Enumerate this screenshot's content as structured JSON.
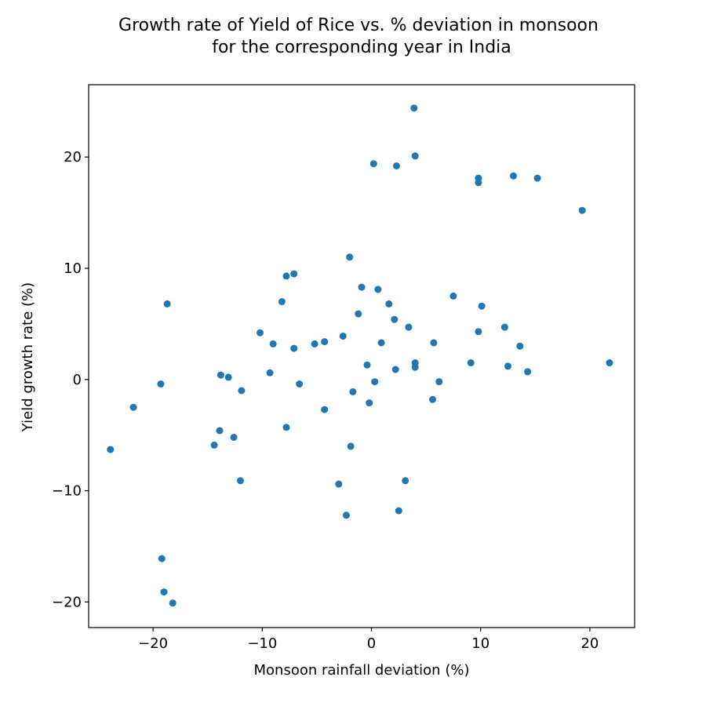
{
  "chart_data": {
    "type": "scatter",
    "title_line1": "Growth rate of Yield of Rice vs. % deviation in monsoon",
    "title_line2": "for the corresponding year in India",
    "xlabel": "Monsoon rainfall deviation (%)",
    "ylabel": "Yield growth rate (%)",
    "xlim": [
      -25.9,
      24.1
    ],
    "ylim": [
      -22.3,
      26.5
    ],
    "xticks": [
      -20,
      -10,
      0,
      10,
      20
    ],
    "yticks": [
      -20,
      -10,
      0,
      10,
      20
    ],
    "xtick_labels": [
      "−20",
      "−10",
      "0",
      "10",
      "20"
    ],
    "ytick_labels": [
      "−20",
      "−10",
      "0",
      "10",
      "20"
    ],
    "grid": false,
    "color": "#1f77b4",
    "points": [
      {
        "x": 3.9,
        "y": 24.4
      },
      {
        "x": 0.2,
        "y": 19.4
      },
      {
        "x": 2.3,
        "y": 19.2
      },
      {
        "x": 4.0,
        "y": 20.1
      },
      {
        "x": 9.8,
        "y": 18.1
      },
      {
        "x": 9.8,
        "y": 17.7
      },
      {
        "x": 13.0,
        "y": 18.3
      },
      {
        "x": 15.2,
        "y": 18.1
      },
      {
        "x": 19.3,
        "y": 15.2
      },
      {
        "x": -2.0,
        "y": 11.0
      },
      {
        "x": -7.1,
        "y": 9.5
      },
      {
        "x": -7.8,
        "y": 9.3
      },
      {
        "x": -0.9,
        "y": 8.3
      },
      {
        "x": 0.6,
        "y": 8.1
      },
      {
        "x": -18.7,
        "y": 6.8
      },
      {
        "x": -8.2,
        "y": 7.0
      },
      {
        "x": 1.6,
        "y": 6.8
      },
      {
        "x": 7.5,
        "y": 7.5
      },
      {
        "x": 10.1,
        "y": 6.6
      },
      {
        "x": -1.2,
        "y": 5.9
      },
      {
        "x": 2.1,
        "y": 5.4
      },
      {
        "x": 3.4,
        "y": 4.7
      },
      {
        "x": 12.2,
        "y": 4.7
      },
      {
        "x": 9.8,
        "y": 4.3
      },
      {
        "x": -10.2,
        "y": 4.2
      },
      {
        "x": -2.6,
        "y": 3.9
      },
      {
        "x": -9.0,
        "y": 3.2
      },
      {
        "x": -5.2,
        "y": 3.2
      },
      {
        "x": -4.3,
        "y": 3.4
      },
      {
        "x": -7.1,
        "y": 2.8
      },
      {
        "x": 0.9,
        "y": 3.3
      },
      {
        "x": 5.7,
        "y": 3.3
      },
      {
        "x": 13.6,
        "y": 3.0
      },
      {
        "x": -0.4,
        "y": 1.3
      },
      {
        "x": 2.2,
        "y": 0.9
      },
      {
        "x": 4.0,
        "y": 1.5
      },
      {
        "x": 4.0,
        "y": 1.1
      },
      {
        "x": 9.1,
        "y": 1.5
      },
      {
        "x": 12.5,
        "y": 1.2
      },
      {
        "x": 14.3,
        "y": 0.7
      },
      {
        "x": 21.8,
        "y": 1.5
      },
      {
        "x": -13.8,
        "y": 0.4
      },
      {
        "x": -13.1,
        "y": 0.2
      },
      {
        "x": -9.3,
        "y": 0.6
      },
      {
        "x": -19.3,
        "y": -0.4
      },
      {
        "x": -11.9,
        "y": -1.0
      },
      {
        "x": -6.6,
        "y": -0.4
      },
      {
        "x": -1.7,
        "y": -1.1
      },
      {
        "x": 0.3,
        "y": -0.2
      },
      {
        "x": 6.2,
        "y": -0.2
      },
      {
        "x": 5.6,
        "y": -1.8
      },
      {
        "x": -21.8,
        "y": -2.5
      },
      {
        "x": -4.3,
        "y": -2.7
      },
      {
        "x": -0.2,
        "y": -2.1
      },
      {
        "x": -23.9,
        "y": -6.3
      },
      {
        "x": -13.9,
        "y": -4.6
      },
      {
        "x": -7.8,
        "y": -4.3
      },
      {
        "x": -12.6,
        "y": -5.2
      },
      {
        "x": -14.4,
        "y": -5.9
      },
      {
        "x": -1.9,
        "y": -6.0
      },
      {
        "x": -12.0,
        "y": -9.1
      },
      {
        "x": -3.0,
        "y": -9.4
      },
      {
        "x": 3.1,
        "y": -9.1
      },
      {
        "x": -2.3,
        "y": -12.2
      },
      {
        "x": 2.5,
        "y": -11.8
      },
      {
        "x": -19.2,
        "y": -16.1
      },
      {
        "x": -19.0,
        "y": -19.1
      },
      {
        "x": -18.2,
        "y": -20.1
      }
    ]
  }
}
